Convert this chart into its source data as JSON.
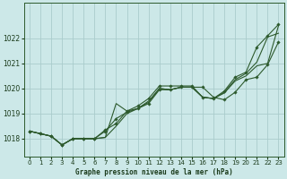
{
  "xlabel": "Graphe pression niveau de la mer (hPa)",
  "bg_color": "#cce8e8",
  "grid_color": "#aacccc",
  "line_color": "#2d5a2d",
  "text_color": "#1a3a1a",
  "ylim": [
    1017.3,
    1023.4
  ],
  "xlim": [
    -0.5,
    23.5
  ],
  "yticks": [
    1018,
    1019,
    1020,
    1021,
    1022
  ],
  "xticks": [
    0,
    1,
    2,
    3,
    4,
    5,
    6,
    7,
    8,
    9,
    10,
    11,
    12,
    13,
    14,
    15,
    16,
    17,
    18,
    19,
    20,
    21,
    22,
    23
  ],
  "series": [
    {
      "y": [
        1018.3,
        1018.2,
        1018.1,
        1017.75,
        1018.0,
        1018.0,
        1018.0,
        1018.35,
        1018.6,
        1019.1,
        1019.3,
        1019.6,
        1020.1,
        1020.1,
        1020.1,
        1020.1,
        1019.65,
        1019.6,
        1019.9,
        1020.45,
        1020.65,
        1021.65,
        1022.1,
        1022.55
      ],
      "markers": true
    },
    {
      "y": [
        1018.3,
        1018.2,
        1018.1,
        1017.75,
        1018.0,
        1018.0,
        1018.0,
        1018.05,
        1019.4,
        1019.1,
        1019.2,
        1019.45,
        1020.0,
        1019.95,
        1020.05,
        1020.05,
        1019.65,
        1019.6,
        1019.85,
        1020.35,
        1020.6,
        1021.05,
        1022.05,
        1022.2
      ],
      "markers": false
    },
    {
      "y": [
        1018.3,
        1018.2,
        1018.1,
        1017.75,
        1018.0,
        1018.0,
        1018.0,
        1018.05,
        1018.5,
        1019.0,
        1019.2,
        1019.5,
        1020.0,
        1019.95,
        1020.05,
        1020.05,
        1019.65,
        1019.6,
        1019.82,
        1020.3,
        1020.5,
        1020.9,
        1021.0,
        1022.5
      ],
      "markers": false
    },
    {
      "y": [
        1018.3,
        1018.2,
        1018.1,
        1017.75,
        1018.0,
        1018.0,
        1018.0,
        1018.3,
        1018.8,
        1019.05,
        1019.2,
        1019.4,
        1019.95,
        1019.95,
        1020.05,
        1020.05,
        1020.05,
        1019.65,
        1019.55,
        1019.85,
        1020.35,
        1020.45,
        1020.95,
        1021.85
      ],
      "markers": true
    }
  ]
}
